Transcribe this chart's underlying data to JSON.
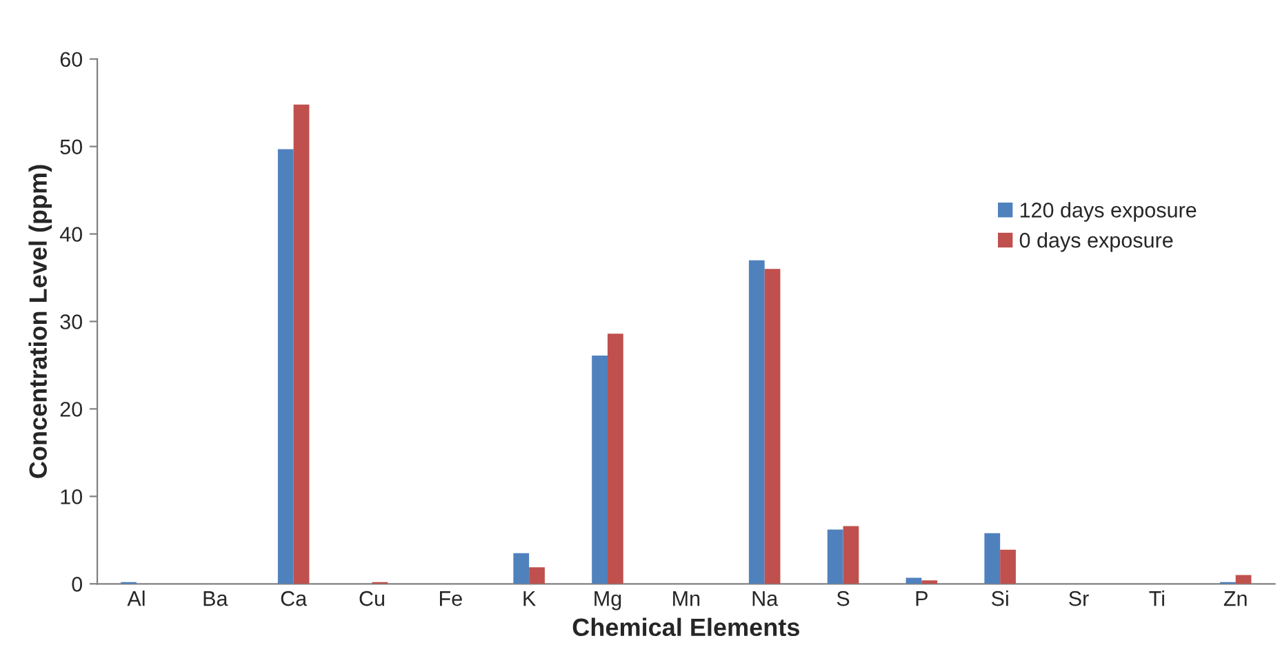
{
  "chart_data": {
    "type": "bar",
    "xlabel": "Chemical Elements",
    "ylabel": "Concentration Level (ppm)",
    "categories": [
      "Al",
      "Ba",
      "Ca",
      "Cu",
      "Fe",
      "K",
      "Mg",
      "Mn",
      "Na",
      "S",
      "P",
      "Si",
      "Sr",
      "Ti",
      "Zn"
    ],
    "series": [
      {
        "name": "120 days exposure",
        "color": "#4f81bd",
        "values": [
          0.2,
          0,
          49.7,
          0,
          0,
          3.5,
          26.1,
          0,
          37.0,
          6.2,
          0.7,
          5.8,
          0,
          0,
          0.2
        ]
      },
      {
        "name": "0 days exposure",
        "color": "#c0504d",
        "values": [
          0,
          0,
          54.8,
          0.2,
          0,
          1.9,
          28.6,
          0,
          36.0,
          6.6,
          0.4,
          3.9,
          0,
          0,
          1.0
        ]
      }
    ],
    "ylim": [
      0,
      60
    ],
    "yticks": [
      0,
      10,
      20,
      30,
      40,
      50,
      60
    ],
    "grid": false,
    "legend": "right"
  }
}
